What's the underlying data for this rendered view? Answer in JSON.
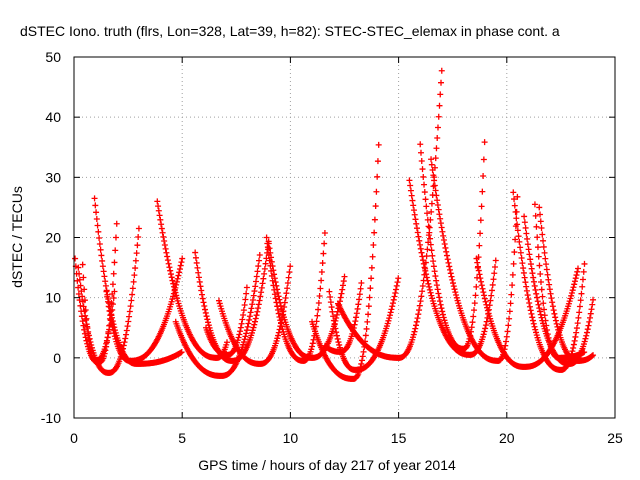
{
  "chart_data": {
    "type": "scatter",
    "title": "dSTEC Iono. truth (flrs, Lon=328, Lat=39, h=82): STEC-STEC_elemax in phase cont. a",
    "xlabel": "GPS time / hours of day 217 of year 2014",
    "ylabel": "dSTEC  / TECUs",
    "xlim": [
      0,
      25
    ],
    "ylim": [
      -10,
      50
    ],
    "x_ticks": [
      0,
      5,
      10,
      15,
      20,
      25
    ],
    "y_ticks": [
      -10,
      0,
      10,
      20,
      30,
      40,
      50
    ],
    "grid": true,
    "marker": "+",
    "series_color": "#ff0000",
    "arcs": [
      {
        "name": "arc-01",
        "start": 0.05,
        "end": 2.0,
        "min_t": 1.15,
        "min_v": -0.8,
        "start_v": 16.5,
        "end_v": 24.0
      },
      {
        "name": "arc-02",
        "start": 0.2,
        "end": 3.0,
        "min_t": 1.6,
        "min_v": -2.5,
        "start_v": 15.0,
        "end_v": 21.5
      },
      {
        "name": "arc-03",
        "start": 0.4,
        "end": 1.9,
        "min_t": 1.0,
        "min_v": -0.5,
        "start_v": 15.5,
        "end_v": 12.0
      },
      {
        "name": "arc-04",
        "start": 0.95,
        "end": 5.0,
        "min_t": 2.9,
        "min_v": -1.0,
        "start_v": 26.5,
        "end_v": 1.0
      },
      {
        "name": "arc-05",
        "start": 1.5,
        "end": 5.0,
        "min_t": 2.6,
        "min_v": -0.5,
        "start_v": 11.0,
        "end_v": 16.5
      },
      {
        "name": "arc-06",
        "start": 3.85,
        "end": 7.1,
        "min_t": 6.6,
        "min_v": 0.0,
        "start_v": 26.0,
        "end_v": 3.0
      },
      {
        "name": "arc-07",
        "start": 4.7,
        "end": 8.6,
        "min_t": 6.8,
        "min_v": -3.0,
        "start_v": 6.0,
        "end_v": 17.5
      },
      {
        "name": "arc-08",
        "start": 5.6,
        "end": 9.0,
        "min_t": 7.3,
        "min_v": -0.5,
        "start_v": 17.5,
        "end_v": 19.5
      },
      {
        "name": "arc-09",
        "start": 6.1,
        "end": 8.0,
        "min_t": 7.1,
        "min_v": 0.5,
        "start_v": 5.0,
        "end_v": 12.0
      },
      {
        "name": "arc-10",
        "start": 6.7,
        "end": 10.0,
        "min_t": 8.6,
        "min_v": -1.0,
        "start_v": 9.5,
        "end_v": 15.5
      },
      {
        "name": "arc-11",
        "start": 8.9,
        "end": 11.6,
        "min_t": 10.6,
        "min_v": -0.5,
        "start_v": 20.0,
        "end_v": 21.0
      },
      {
        "name": "arc-12",
        "start": 9.0,
        "end": 12.5,
        "min_t": 11.0,
        "min_v": 0.0,
        "start_v": 19.0,
        "end_v": 13.5
      },
      {
        "name": "arc-13",
        "start": 11.0,
        "end": 14.1,
        "min_t": 12.9,
        "min_v": -3.5,
        "start_v": 6.0,
        "end_v": 37.0
      },
      {
        "name": "arc-14",
        "start": 11.8,
        "end": 15.0,
        "min_t": 13.0,
        "min_v": -2.0,
        "start_v": 11.0,
        "end_v": 13.5
      },
      {
        "name": "arc-15",
        "start": 11.6,
        "end": 13.3,
        "min_t": 12.3,
        "min_v": 1.0,
        "start_v": 2.0,
        "end_v": 13.0
      },
      {
        "name": "arc-16",
        "start": 12.2,
        "end": 17.0,
        "min_t": 15.0,
        "min_v": 0.0,
        "start_v": 9.0,
        "end_v": 48.0
      },
      {
        "name": "arc-17",
        "start": 15.5,
        "end": 19.5,
        "min_t": 18.3,
        "min_v": 0.5,
        "start_v": 29.5,
        "end_v": 16.5
      },
      {
        "name": "arc-18",
        "start": 16.0,
        "end": 19.0,
        "min_t": 18.0,
        "min_v": 1.5,
        "start_v": 35.5,
        "end_v": 38.0
      },
      {
        "name": "arc-19",
        "start": 16.5,
        "end": 20.5,
        "min_t": 19.6,
        "min_v": -0.5,
        "start_v": 33.0,
        "end_v": 27.5
      },
      {
        "name": "arc-20",
        "start": 18.6,
        "end": 23.3,
        "min_t": 20.8,
        "min_v": -1.5,
        "start_v": 16.5,
        "end_v": 15.0
      },
      {
        "name": "arc-21",
        "start": 20.3,
        "end": 23.6,
        "min_t": 22.5,
        "min_v": -2.0,
        "start_v": 27.5,
        "end_v": 16.0
      },
      {
        "name": "arc-22",
        "start": 20.8,
        "end": 24.0,
        "min_t": 22.9,
        "min_v": -1.0,
        "start_v": 23.5,
        "end_v": 10.0
      },
      {
        "name": "arc-23",
        "start": 21.3,
        "end": 23.6,
        "min_t": 22.4,
        "min_v": 0.0,
        "start_v": 25.5,
        "end_v": 1.0
      },
      {
        "name": "arc-24",
        "start": 21.5,
        "end": 24.0,
        "min_t": 23.3,
        "min_v": -0.5,
        "start_v": 25.0,
        "end_v": 0.5
      }
    ]
  }
}
